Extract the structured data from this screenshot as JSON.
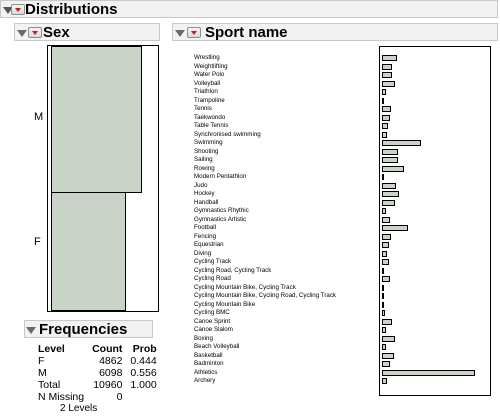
{
  "report": {
    "title": "Distributions"
  },
  "sex": {
    "title": "Sex",
    "categories": [
      "M",
      "F"
    ],
    "proportions": [
      0.556,
      0.444
    ]
  },
  "sport": {
    "title": "Sport name",
    "items": [
      {
        "label": "Wrestling",
        "value": 15
      },
      {
        "label": "Weightlifting",
        "value": 10
      },
      {
        "label": "Water Polo",
        "value": 10
      },
      {
        "label": "Volleyball",
        "value": 13
      },
      {
        "label": "Triathlon",
        "value": 4
      },
      {
        "label": "Trampoline",
        "value": 2
      },
      {
        "label": "Tennis",
        "value": 9
      },
      {
        "label": "Taekwondo",
        "value": 8
      },
      {
        "label": "Table Tennis",
        "value": 6
      },
      {
        "label": "Synchronised swimming",
        "value": 5
      },
      {
        "label": "Swimming",
        "value": 40
      },
      {
        "label": "Shooting",
        "value": 16
      },
      {
        "label": "Sailing",
        "value": 16
      },
      {
        "label": "Rowing",
        "value": 22
      },
      {
        "label": "Modern Pentathlon",
        "value": 2
      },
      {
        "label": "Judo",
        "value": 14
      },
      {
        "label": "Hockey",
        "value": 17
      },
      {
        "label": "Handball",
        "value": 13
      },
      {
        "label": "Gymnastics Rhythic",
        "value": 4
      },
      {
        "label": "Gymnastics Artistic",
        "value": 8
      },
      {
        "label": "Football",
        "value": 27
      },
      {
        "label": "Fencing",
        "value": 9
      },
      {
        "label": "Equestrian",
        "value": 7
      },
      {
        "label": "Diving",
        "value": 5
      },
      {
        "label": "Cycling Track",
        "value": 7
      },
      {
        "label": "Cycling Road, Cycling Track",
        "value": 1
      },
      {
        "label": "Cycling Road",
        "value": 8
      },
      {
        "label": "Cycling Mountain Bike, Cycling Track",
        "value": 1
      },
      {
        "label": "Cycling Mountain Bike, Cycling Road, Cycling Track",
        "value": 1
      },
      {
        "label": "Cycling Mountain Bike",
        "value": 1
      },
      {
        "label": "Cycling BMC",
        "value": 3
      },
      {
        "label": "Canoe Sprint",
        "value": 10
      },
      {
        "label": "Canoe Slalom",
        "value": 4
      },
      {
        "label": "Boxing",
        "value": 13
      },
      {
        "label": "Beach Volleyball",
        "value": 4
      },
      {
        "label": "Basketball",
        "value": 12
      },
      {
        "label": "Badminton",
        "value": 8
      },
      {
        "label": "Athletics",
        "value": 95
      },
      {
        "label": "Archery",
        "value": 5
      }
    ]
  },
  "frequencies": {
    "title": "Frequencies",
    "headers": [
      "Level",
      "Count",
      "Prob"
    ],
    "rows": [
      [
        "F",
        "4862",
        "0.444"
      ],
      [
        "M",
        "6098",
        "0.556"
      ],
      [
        "Total",
        "10960",
        "1.000"
      ]
    ],
    "missing_label": "N Missing",
    "missing_value": "0",
    "levels_text": "2 Levels"
  }
}
